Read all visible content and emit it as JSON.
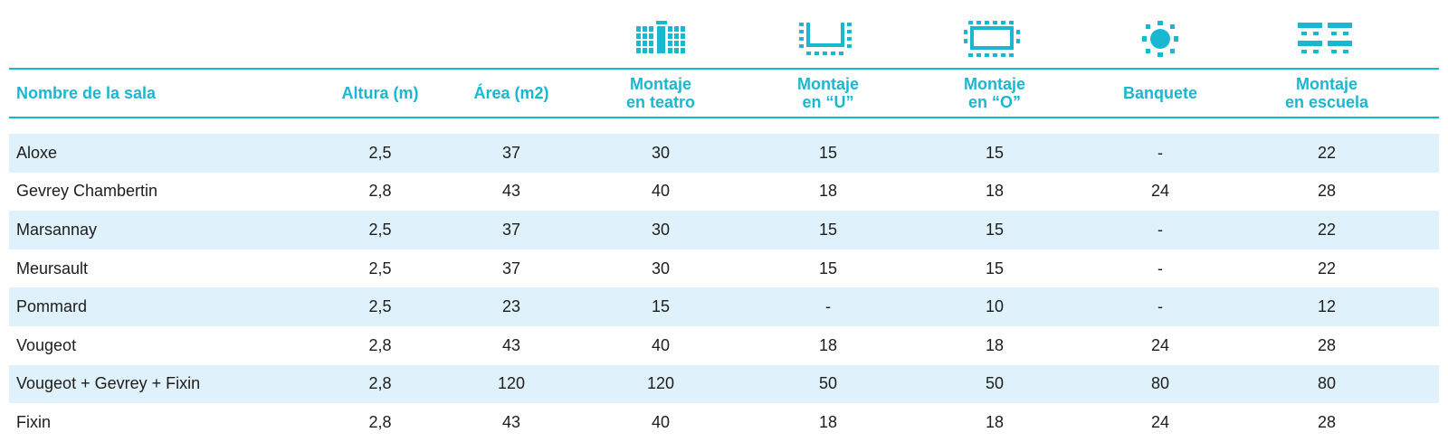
{
  "colors": {
    "accent": "#1ab7d1",
    "row_shade": "#dff1fa",
    "text": "#1d1d1b"
  },
  "icons": [
    {
      "name": "theatre-setup-icon"
    },
    {
      "name": "u-shape-setup-icon"
    },
    {
      "name": "o-shape-setup-icon"
    },
    {
      "name": "banquet-setup-icon"
    },
    {
      "name": "school-setup-icon"
    }
  ],
  "table": {
    "headers": [
      "Nombre de la sala",
      "Altura (m)",
      "Área (m2)",
      "Montaje\nen teatro",
      "Montaje\nen “U”",
      "Montaje\nen “O”",
      "Banquete",
      "Montaje\nen escuela"
    ],
    "rows": [
      [
        "Aloxe",
        "2,5",
        "37",
        "30",
        "15",
        "15",
        "-",
        "22"
      ],
      [
        "Gevrey Chambertin",
        "2,8",
        "43",
        "40",
        "18",
        "18",
        "24",
        "28"
      ],
      [
        "Marsannay",
        "2,5",
        "37",
        "30",
        "15",
        "15",
        "-",
        "22"
      ],
      [
        "Meursault",
        "2,5",
        "37",
        "30",
        "15",
        "15",
        "-",
        "22"
      ],
      [
        "Pommard",
        "2,5",
        "23",
        "15",
        "-",
        "10",
        "-",
        "12"
      ],
      [
        "Vougeot",
        "2,8",
        "43",
        "40",
        "18",
        "18",
        "24",
        "28"
      ],
      [
        "Vougeot + Gevrey + Fixin",
        "2,8",
        "120",
        "120",
        "50",
        "50",
        "80",
        "80"
      ],
      [
        "Fixin",
        "2,8",
        "43",
        "40",
        "18",
        "18",
        "24",
        "28"
      ]
    ]
  }
}
